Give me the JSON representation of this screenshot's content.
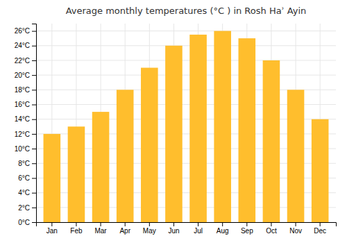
{
  "chart_data": {
    "type": "bar",
    "title": "Average monthly temperatures (°C ) in Rosh Haʾ Ayin",
    "categories": [
      "Jan",
      "Feb",
      "Mar",
      "Apr",
      "May",
      "Jun",
      "Jul",
      "Aug",
      "Sep",
      "Oct",
      "Nov",
      "Dec"
    ],
    "values": [
      12,
      13,
      15,
      18,
      21,
      24,
      25.5,
      26,
      25,
      22,
      18,
      14
    ],
    "color": "#FFBE2D",
    "ylim": [
      0,
      27
    ],
    "yticks": [
      {
        "value": 0,
        "label": "0°C"
      },
      {
        "value": 2,
        "label": "2°C"
      },
      {
        "value": 4,
        "label": "4°C"
      },
      {
        "value": 6,
        "label": "6°C"
      },
      {
        "value": 8,
        "label": "8°C"
      },
      {
        "value": 10,
        "label": "10°C"
      },
      {
        "value": 12,
        "label": "12°C"
      },
      {
        "value": 14,
        "label": "14°C"
      },
      {
        "value": 16,
        "label": "16°C"
      },
      {
        "value": 18,
        "label": "18°C"
      },
      {
        "value": 20,
        "label": "20°C"
      },
      {
        "value": 22,
        "label": "22°C"
      },
      {
        "value": 24,
        "label": "24°C"
      },
      {
        "value": 26,
        "label": "26°C"
      }
    ],
    "grid": true
  }
}
